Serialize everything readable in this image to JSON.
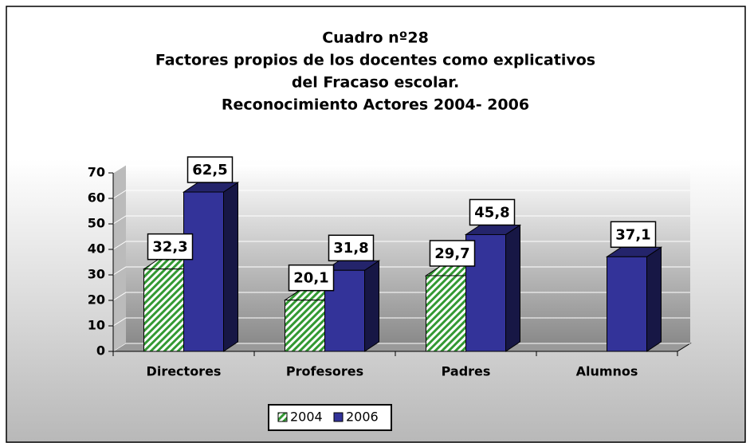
{
  "chart_data": {
    "type": "bar3d",
    "title": [
      "Cuadro nº28",
      "Factores propios de los docentes como explicativos",
      "del Fracaso escolar.",
      "Reconocimiento Actores 2004- 2006"
    ],
    "categories": [
      "Directores",
      "Profesores",
      "Padres",
      "Alumnos"
    ],
    "series": [
      {
        "name": "2004",
        "color": "#339933",
        "pattern": "hatch",
        "values": [
          32.3,
          20.1,
          29.7,
          null
        ],
        "value_labels": [
          "32,3",
          "20,1",
          "29,7",
          null
        ]
      },
      {
        "name": "2006",
        "color": "#333399",
        "values": [
          62.5,
          31.8,
          45.8,
          37.1
        ],
        "value_labels": [
          "62,5",
          "31,8",
          "45,8",
          "37,1"
        ]
      }
    ],
    "ylim": [
      0,
      70
    ],
    "yticks": [
      0,
      10,
      20,
      30,
      40,
      50,
      60,
      70
    ],
    "grid": true,
    "legend": "bottom"
  }
}
